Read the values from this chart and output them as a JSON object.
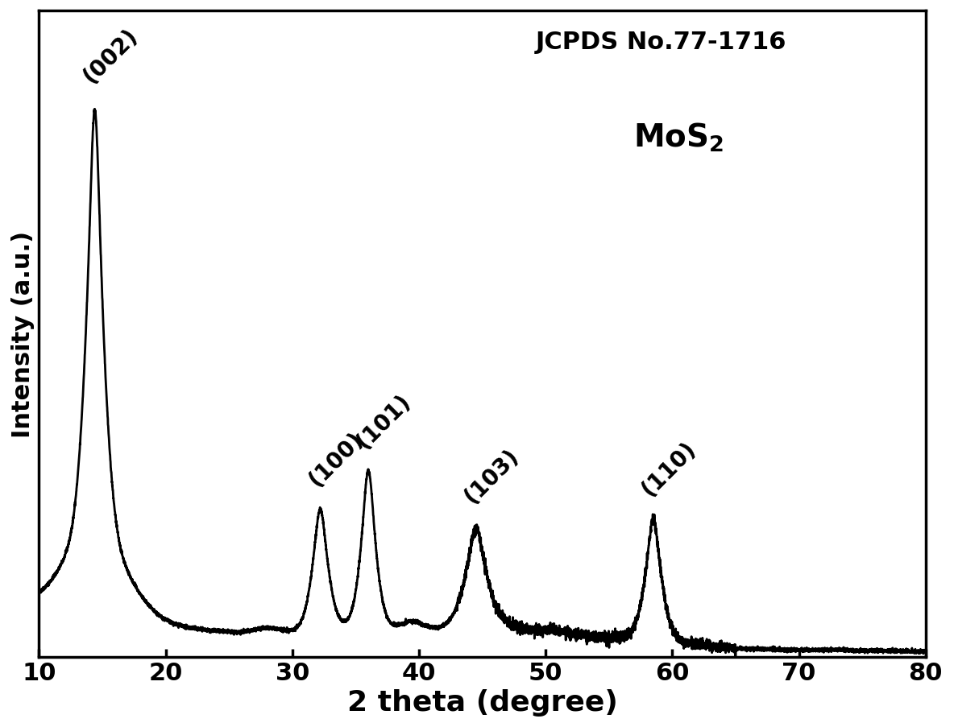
{
  "xlabel": "2 theta (degree)",
  "ylabel": "Intensity (a.u.)",
  "annotation_line1": "JCPDS No.77-1716",
  "xlim": [
    10,
    80
  ],
  "xticks": [
    10,
    20,
    30,
    40,
    50,
    60,
    70,
    80
  ],
  "peak_labels": [
    "(002)",
    "(100)",
    "(101)",
    "(103)",
    "(110)"
  ],
  "peak_positions": [
    14.4,
    32.2,
    36.0,
    44.5,
    58.5
  ],
  "line_color": "#000000",
  "background_color": "#ffffff",
  "xlabel_fontsize": 26,
  "ylabel_fontsize": 22,
  "tick_fontsize": 22,
  "annotation_fontsize": 22,
  "peak_label_fontsize": 20,
  "line_width": 2.0
}
